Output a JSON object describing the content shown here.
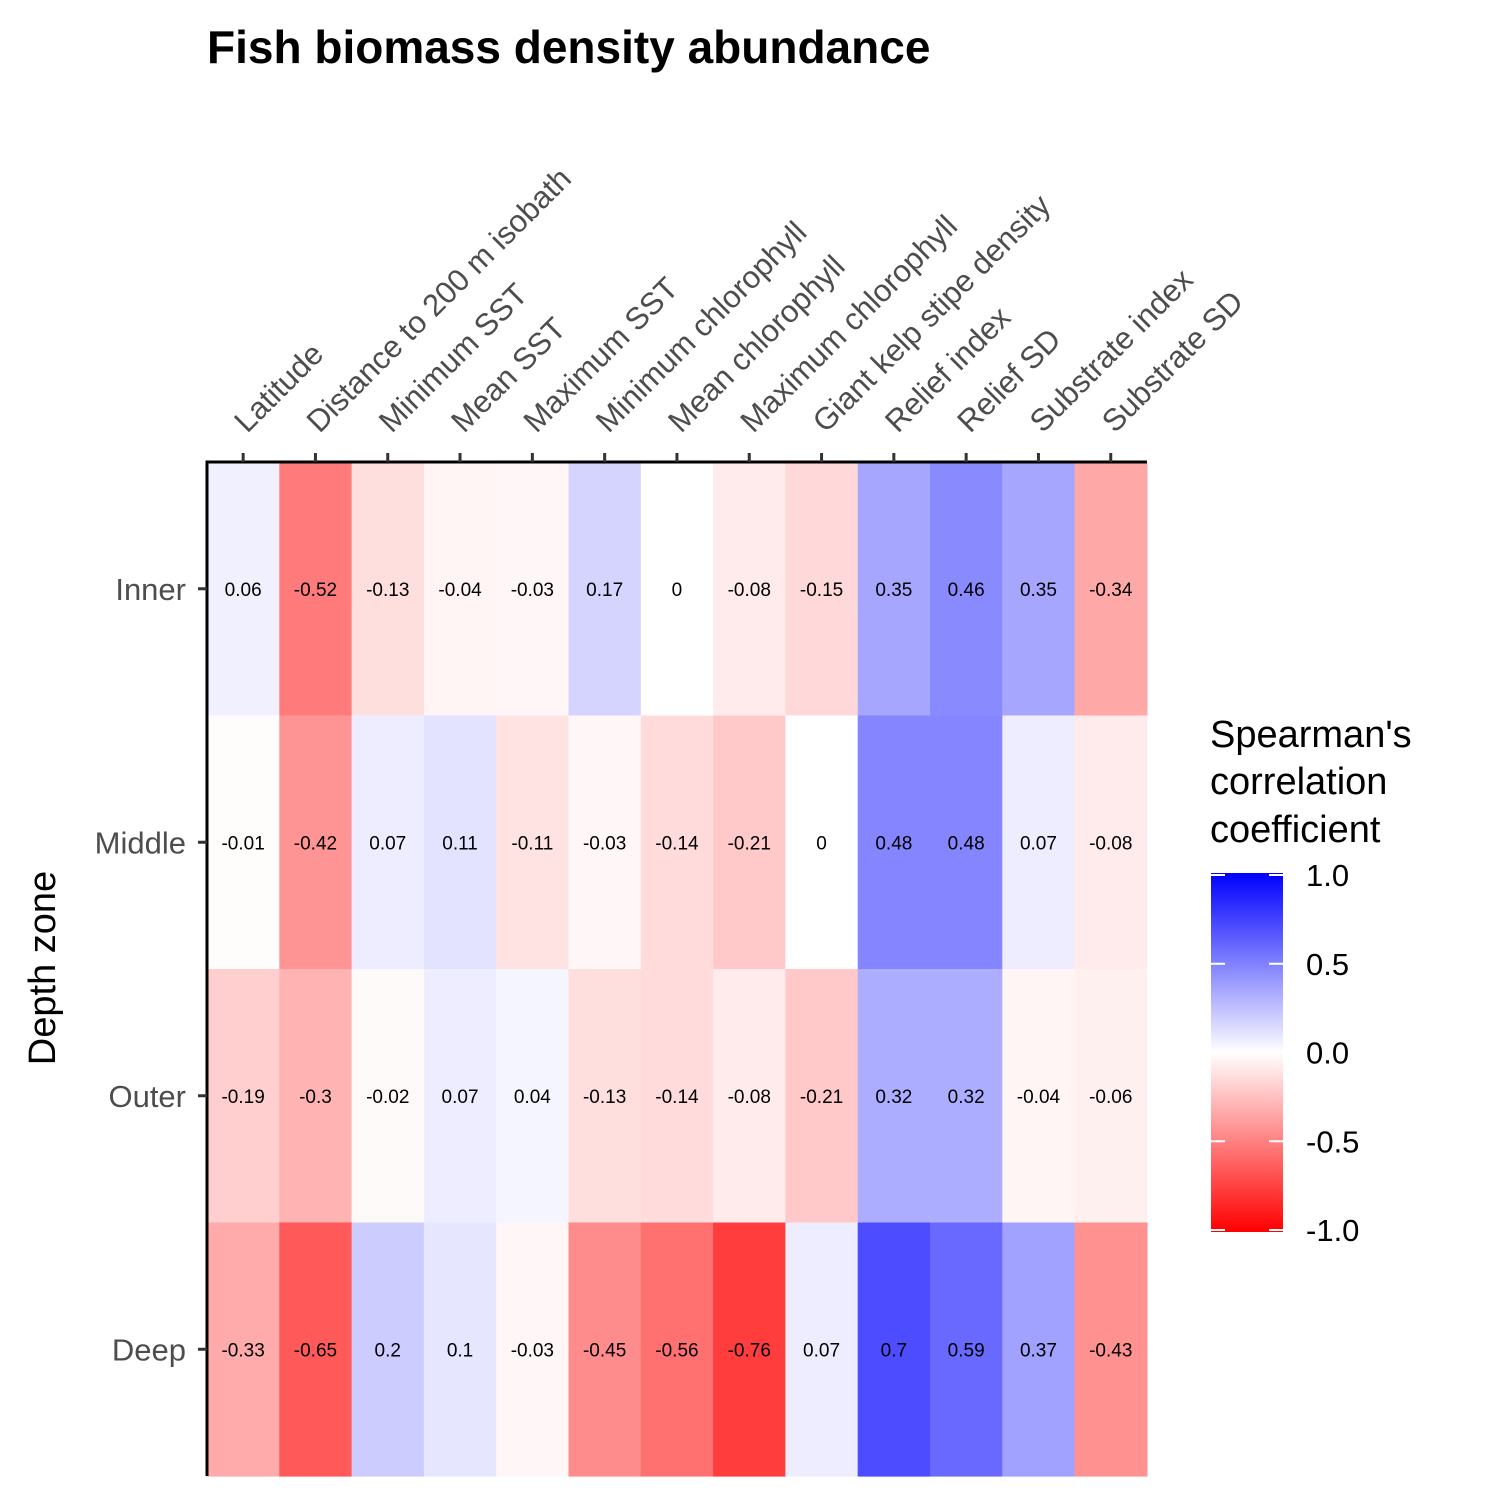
{
  "chart_data": {
    "type": "heatmap",
    "title": "Fish biomass density abundance",
    "xlabel": "",
    "ylabel": "Depth zone",
    "x_categories": [
      "Latitude",
      "Distance to 200 m isobath",
      "Minimum SST",
      "Mean SST",
      "Maximum SST",
      "Minimum chlorophyll",
      "Mean chlorophyll",
      "Maximum chlorophyll",
      "Giant kelp stipe density",
      "Relief index",
      "Relief SD",
      "Substrate index",
      "Substrate SD"
    ],
    "y_categories": [
      "Inner",
      "Middle",
      "Outer",
      "Deep"
    ],
    "values": [
      [
        0.06,
        -0.52,
        -0.13,
        -0.04,
        -0.03,
        0.17,
        0,
        -0.08,
        -0.15,
        0.35,
        0.46,
        0.35,
        -0.34
      ],
      [
        -0.01,
        -0.42,
        0.07,
        0.11,
        -0.11,
        -0.03,
        -0.14,
        -0.21,
        0,
        0.48,
        0.48,
        0.07,
        -0.08
      ],
      [
        -0.19,
        -0.3,
        -0.02,
        0.07,
        0.04,
        -0.13,
        -0.14,
        -0.08,
        -0.21,
        0.32,
        0.32,
        -0.04,
        -0.06
      ],
      [
        -0.33,
        -0.65,
        0.2,
        0.1,
        -0.03,
        -0.45,
        -0.56,
        -0.76,
        0.07,
        0.7,
        0.59,
        0.37,
        -0.43
      ]
    ],
    "colorscale": {
      "low": "#ff0000",
      "mid": "#ffffff",
      "high": "#0000ff",
      "limits": [
        -1.0,
        1.0
      ],
      "ticks": [
        "1.0",
        "0.5",
        "0.0",
        "-0.5",
        "-1.0"
      ]
    },
    "legend": {
      "title_lines": [
        "Spearman's",
        "correlation",
        "coefficient"
      ],
      "position": "right"
    },
    "x_axis_position": "top",
    "grid": false
  }
}
